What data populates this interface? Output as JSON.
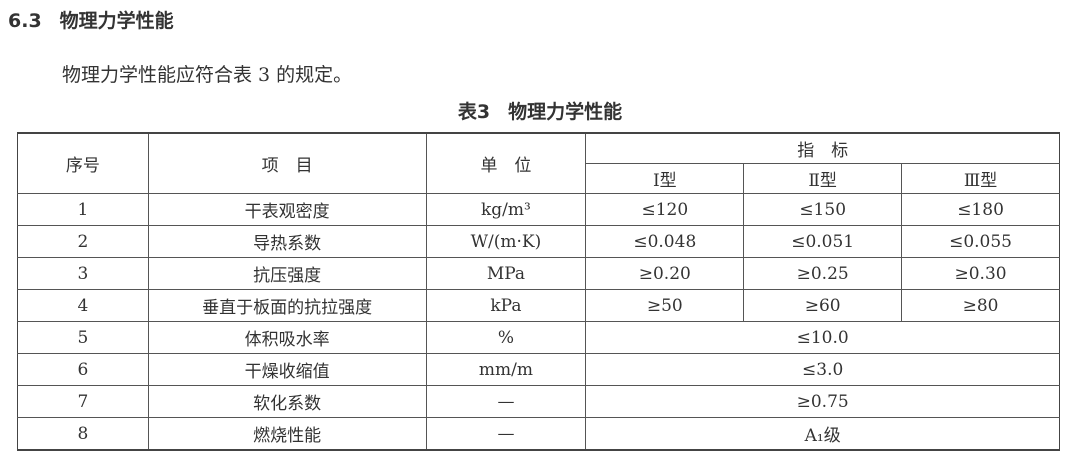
{
  "section": {
    "number": "6.3",
    "title": "物理力学性能"
  },
  "paragraph": "物理力学性能应符合表 3 的规定。",
  "caption": {
    "label": "表3",
    "title": "物理力学性能"
  },
  "table": {
    "headers": {
      "no": "序号",
      "item": "项　目",
      "unit": "单　位",
      "spec": "指　标",
      "types": [
        "Ⅰ型",
        "Ⅱ型",
        "Ⅲ型"
      ]
    },
    "rows": [
      {
        "no": "1",
        "item": "干表观密度",
        "unit": "kg/m³",
        "values": [
          "≤120",
          "≤150",
          "≤180"
        ]
      },
      {
        "no": "2",
        "item": "导热系数",
        "unit": "W/(m·K)",
        "values": [
          "≤0.048",
          "≤0.051",
          "≤0.055"
        ]
      },
      {
        "no": "3",
        "item": "抗压强度",
        "unit": "MPa",
        "values": [
          "≥0.20",
          "≥0.25",
          "≥0.30"
        ]
      },
      {
        "no": "4",
        "item": "垂直于板面的抗拉强度",
        "unit": "kPa",
        "values": [
          "≥50",
          "≥60",
          "≥80"
        ]
      },
      {
        "no": "5",
        "item": "体积吸水率",
        "unit": "%",
        "value": "≤10.0"
      },
      {
        "no": "6",
        "item": "干燥收缩值",
        "unit": "mm/m",
        "value": "≤3.0"
      },
      {
        "no": "7",
        "item": "软化系数",
        "unit": "—",
        "value": "≥0.75"
      },
      {
        "no": "8",
        "item": "燃烧性能",
        "unit": "—",
        "value": "A₁级"
      }
    ]
  }
}
